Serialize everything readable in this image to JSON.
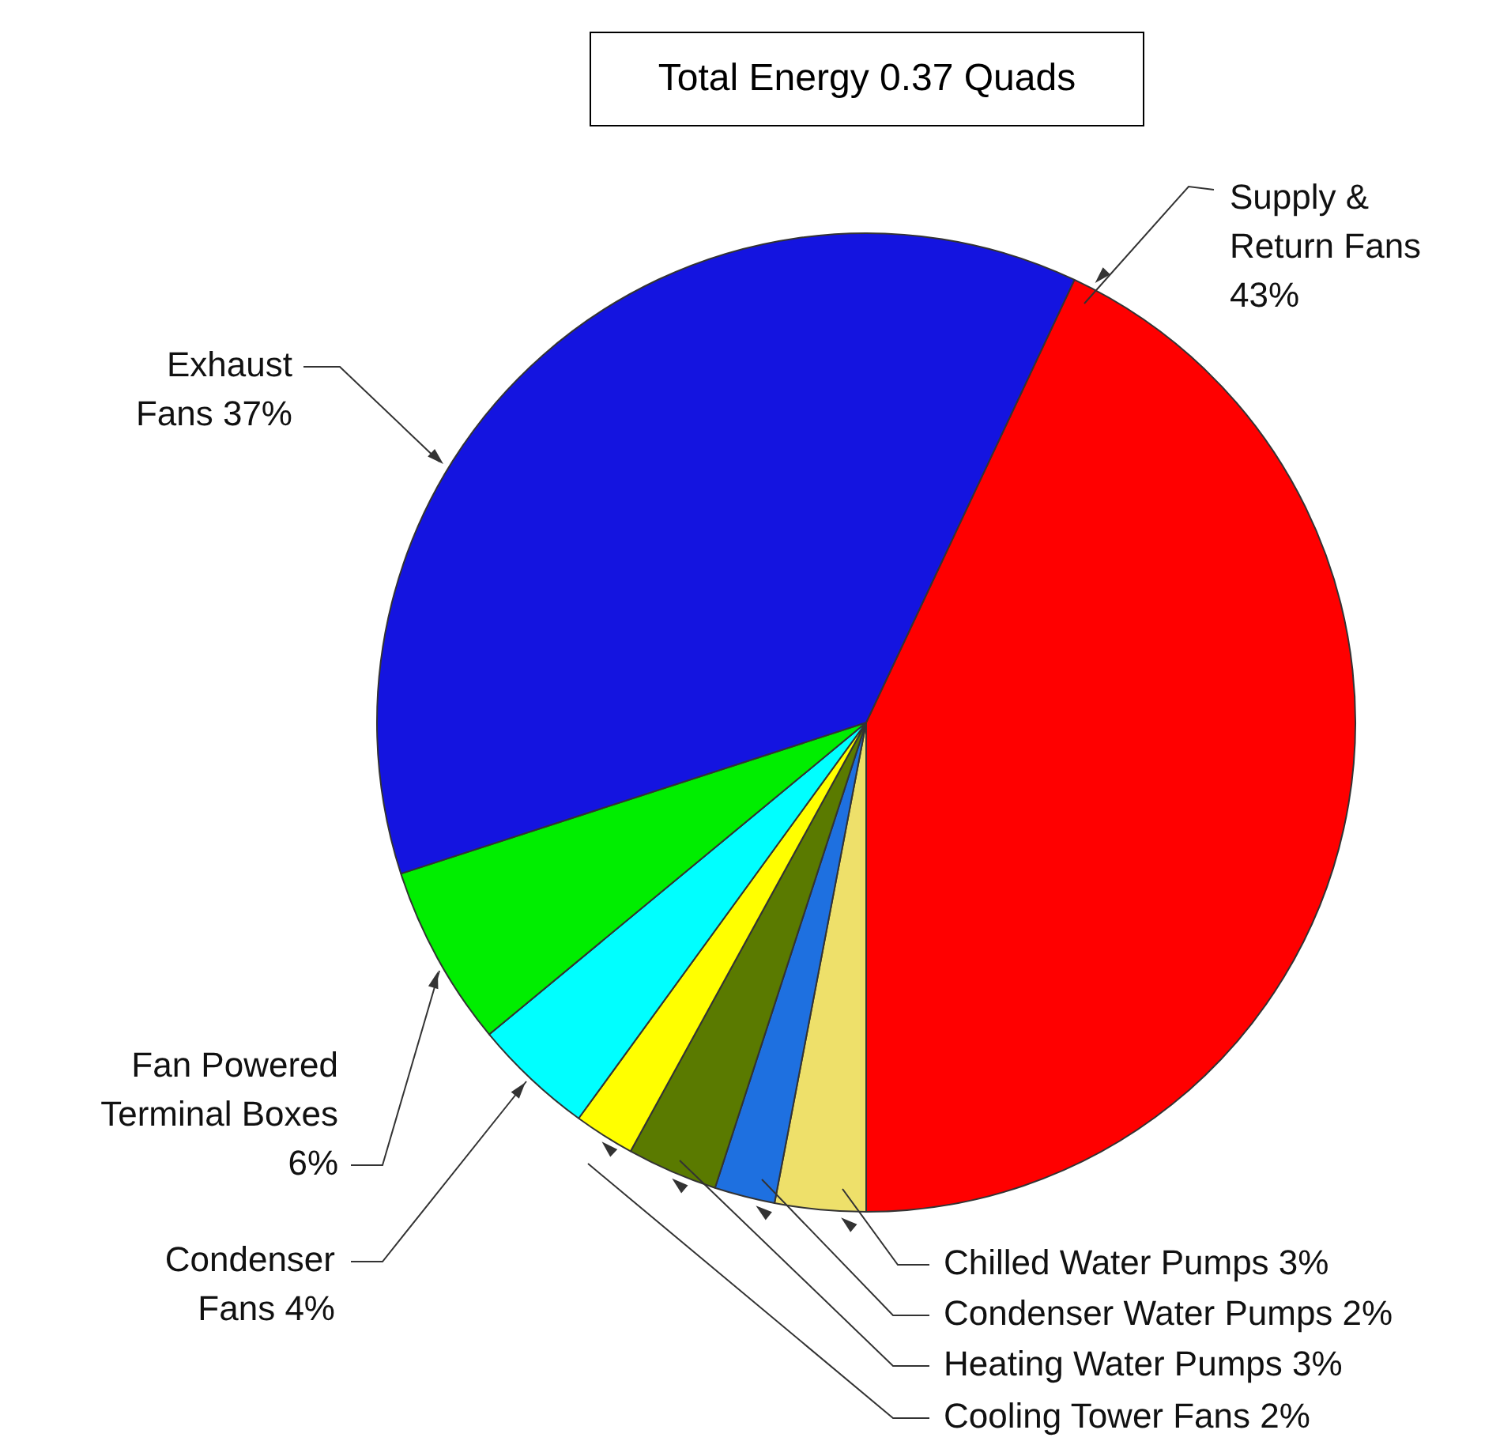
{
  "chart_data": {
    "type": "pie",
    "title": "Total Energy 0.37 Quads",
    "categories": [
      "Supply & Return Fans",
      "Chilled Water Pumps",
      "Condenser Water Pumps",
      "Heating Water Pumps",
      "Cooling Tower Fans",
      "Condenser Fans",
      "Fan Powered Terminal Boxes",
      "Exhaust Fans"
    ],
    "values": [
      43,
      3,
      2,
      3,
      2,
      4,
      6,
      37
    ],
    "value_labels": [
      "43%",
      "3%",
      "2%",
      "3%",
      "2%",
      "4%",
      "6%",
      "37%"
    ],
    "colors": [
      "#ff0000",
      "#eee06a",
      "#1e70e0",
      "#5a7a00",
      "#ffff00",
      "#00ffff",
      "#00ee00",
      "#1414e0"
    ],
    "legend": false
  }
}
